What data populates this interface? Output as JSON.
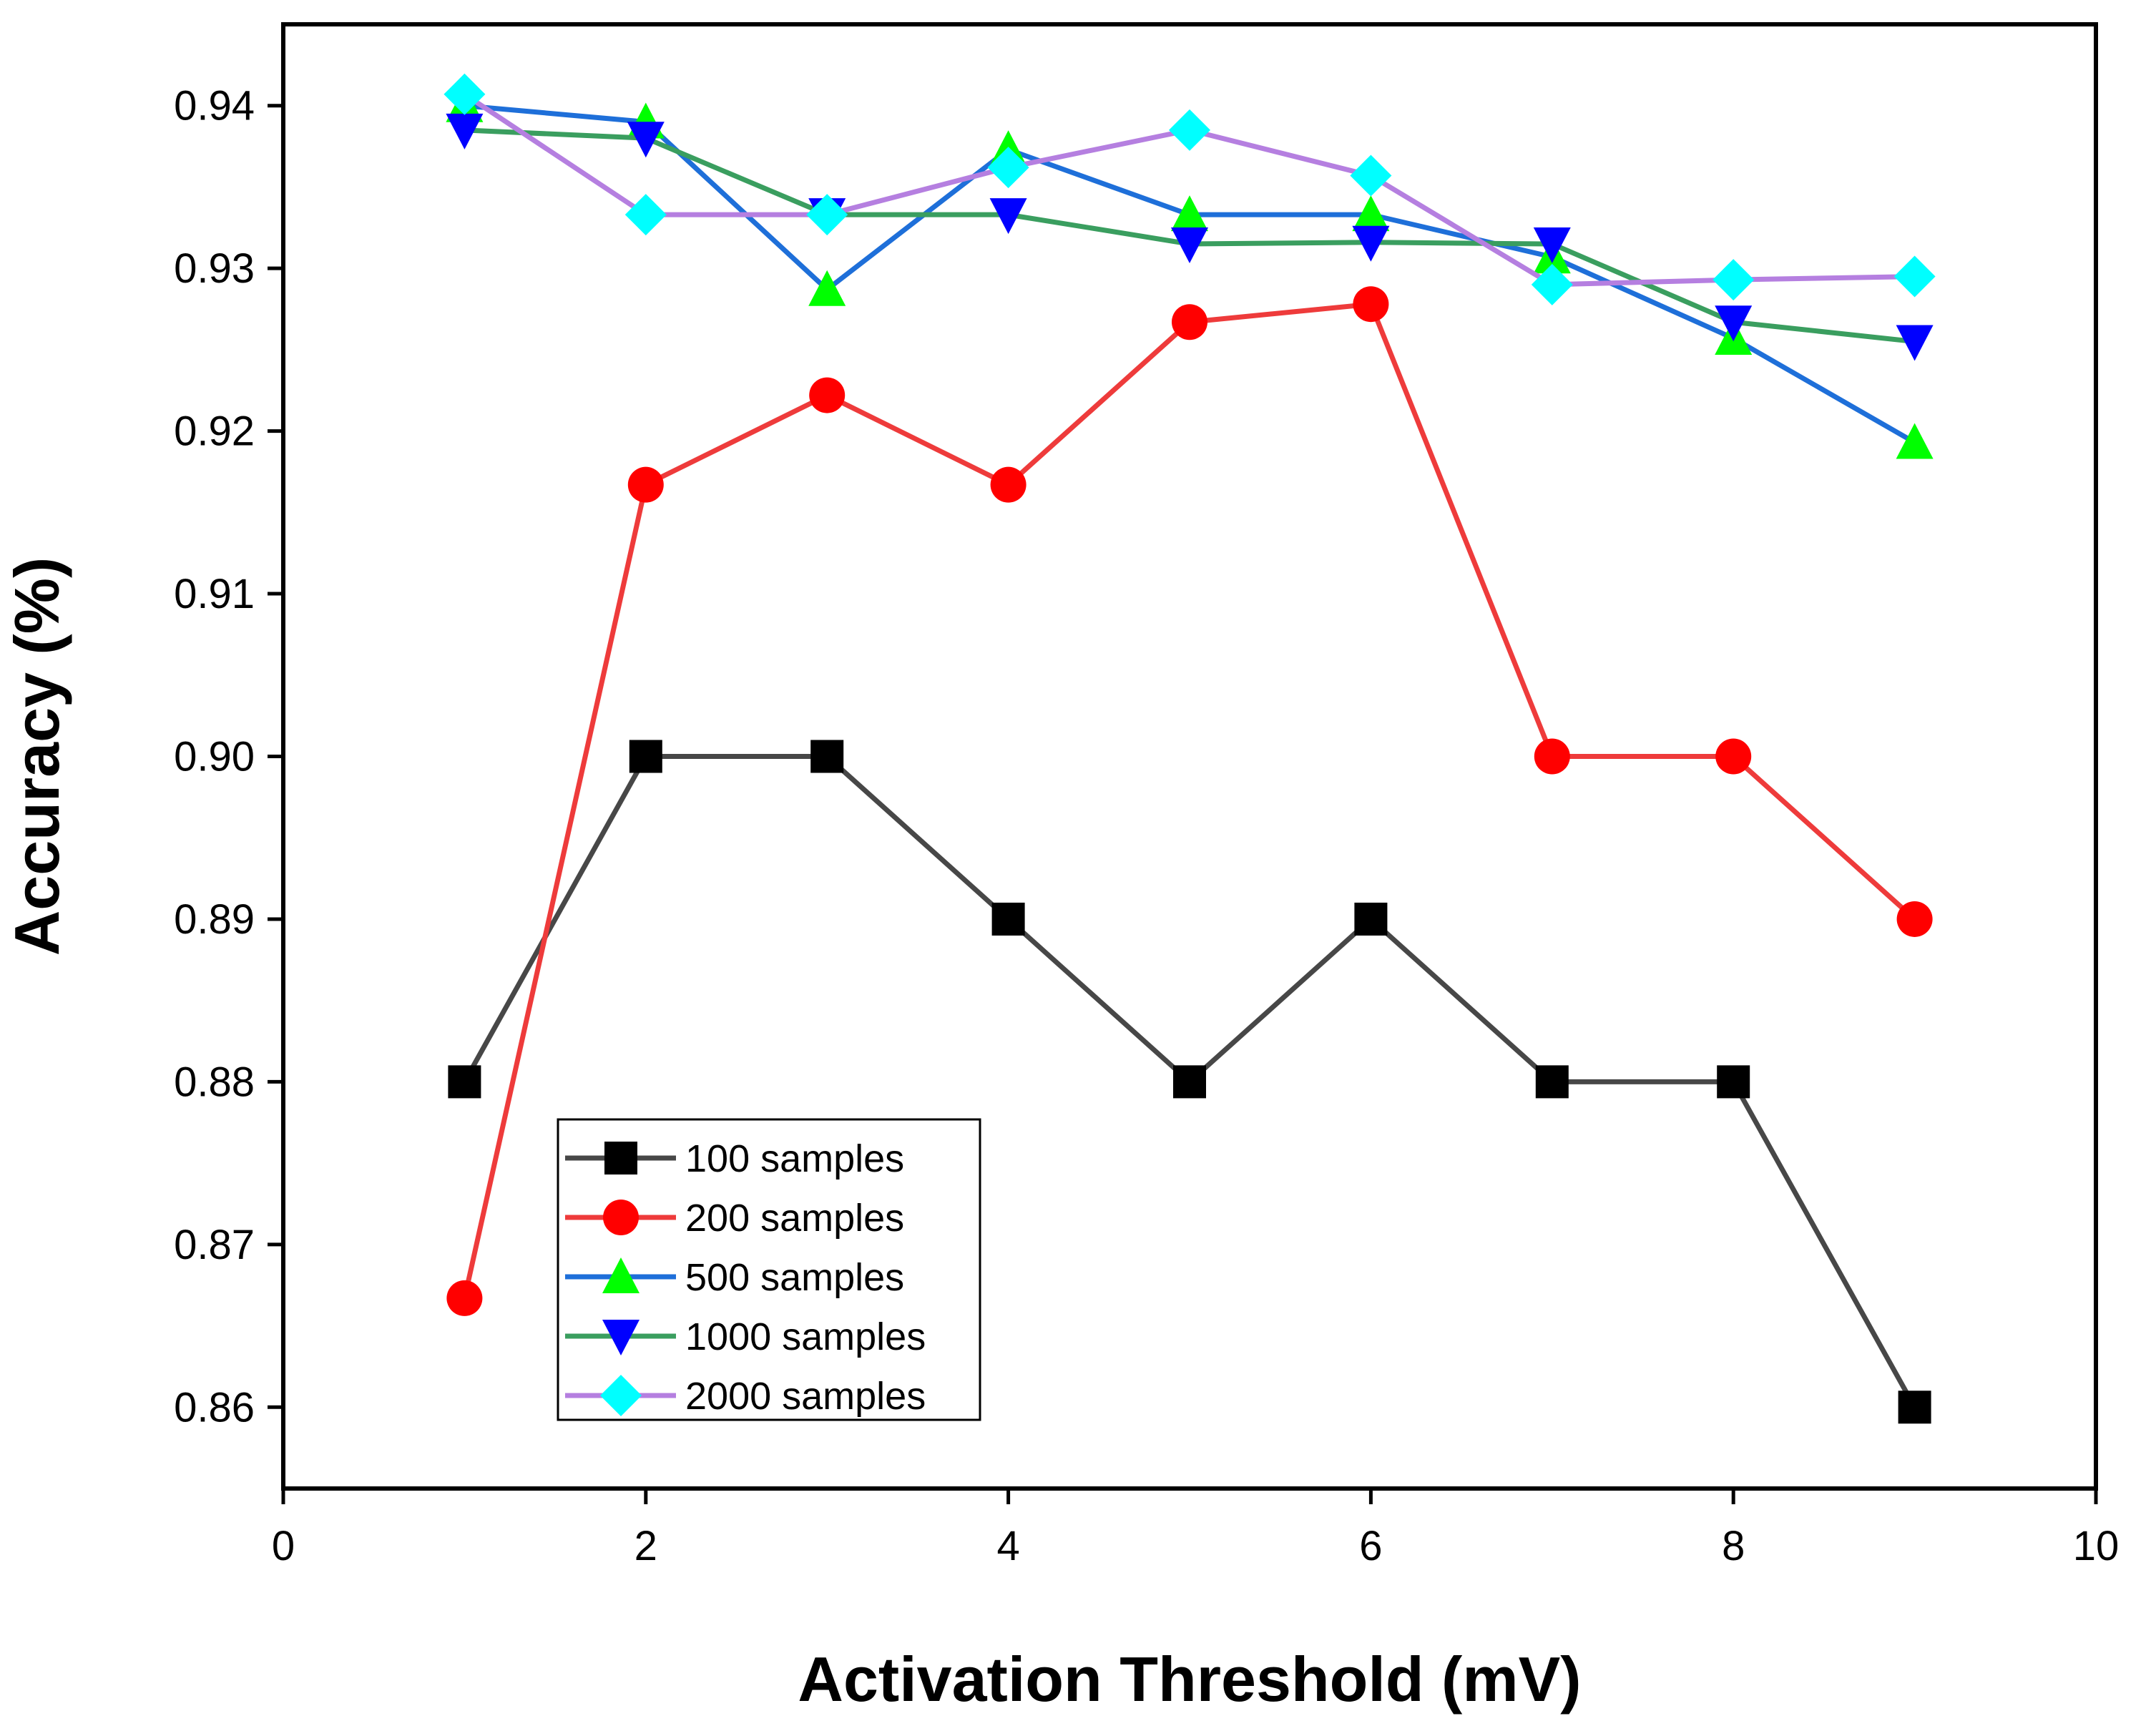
{
  "chart_data": {
    "type": "line",
    "title": "",
    "xlabel": "Activation Threshold (mV)",
    "ylabel": "Accuracy (%)",
    "xlim": [
      0,
      10
    ],
    "ylim": [
      0.855,
      0.945
    ],
    "xticks": [
      0,
      2,
      4,
      6,
      8,
      10
    ],
    "xtick_labels": [
      "0",
      "2",
      "4",
      "6",
      "8",
      "10"
    ],
    "yticks": [
      0.86,
      0.87,
      0.88,
      0.89,
      0.9,
      0.91,
      0.92,
      0.93,
      0.94
    ],
    "ytick_labels": [
      "0.86",
      "0.87",
      "0.88",
      "0.89",
      "0.90",
      "0.91",
      "0.92",
      "0.93",
      "0.94"
    ],
    "grid": false,
    "legend_position": "lower-left",
    "x": [
      1,
      2,
      3,
      4,
      5,
      6,
      7,
      8,
      9
    ],
    "series": [
      {
        "name": "100 samples",
        "marker": "square",
        "line_color": "#474747",
        "marker_color": "#000000",
        "values": [
          0.88,
          0.9,
          0.9,
          0.89,
          0.88,
          0.89,
          0.88,
          0.88,
          0.86
        ]
      },
      {
        "name": "200 samples",
        "marker": "circle",
        "line_color": "#ee3b3b",
        "marker_color": "#ff0000",
        "values": [
          0.8667,
          0.9167,
          0.9222,
          0.9167,
          0.9267,
          0.9278,
          0.9,
          0.9,
          0.89
        ]
      },
      {
        "name": "500 samples",
        "marker": "triangle-up",
        "line_color": "#1e6fd9",
        "marker_color": "#00ff00",
        "values": [
          0.94,
          0.939,
          0.9287,
          0.9373,
          0.9333,
          0.9333,
          0.9307,
          0.9257,
          0.9193
        ]
      },
      {
        "name": "1000 samples",
        "marker": "triangle-down",
        "line_color": "#3a9e5f",
        "marker_color": "#0000ff",
        "values": [
          0.9385,
          0.938,
          0.9333,
          0.9333,
          0.9315,
          0.9316,
          0.9315,
          0.9267,
          0.9255
        ]
      },
      {
        "name": "2000 samples",
        "marker": "diamond",
        "line_color": "#b57fe0",
        "marker_color": "#00ffff",
        "values": [
          0.9407,
          0.9333,
          0.9333,
          0.9362,
          0.9385,
          0.9357,
          0.929,
          0.9293,
          0.9295
        ]
      }
    ]
  }
}
